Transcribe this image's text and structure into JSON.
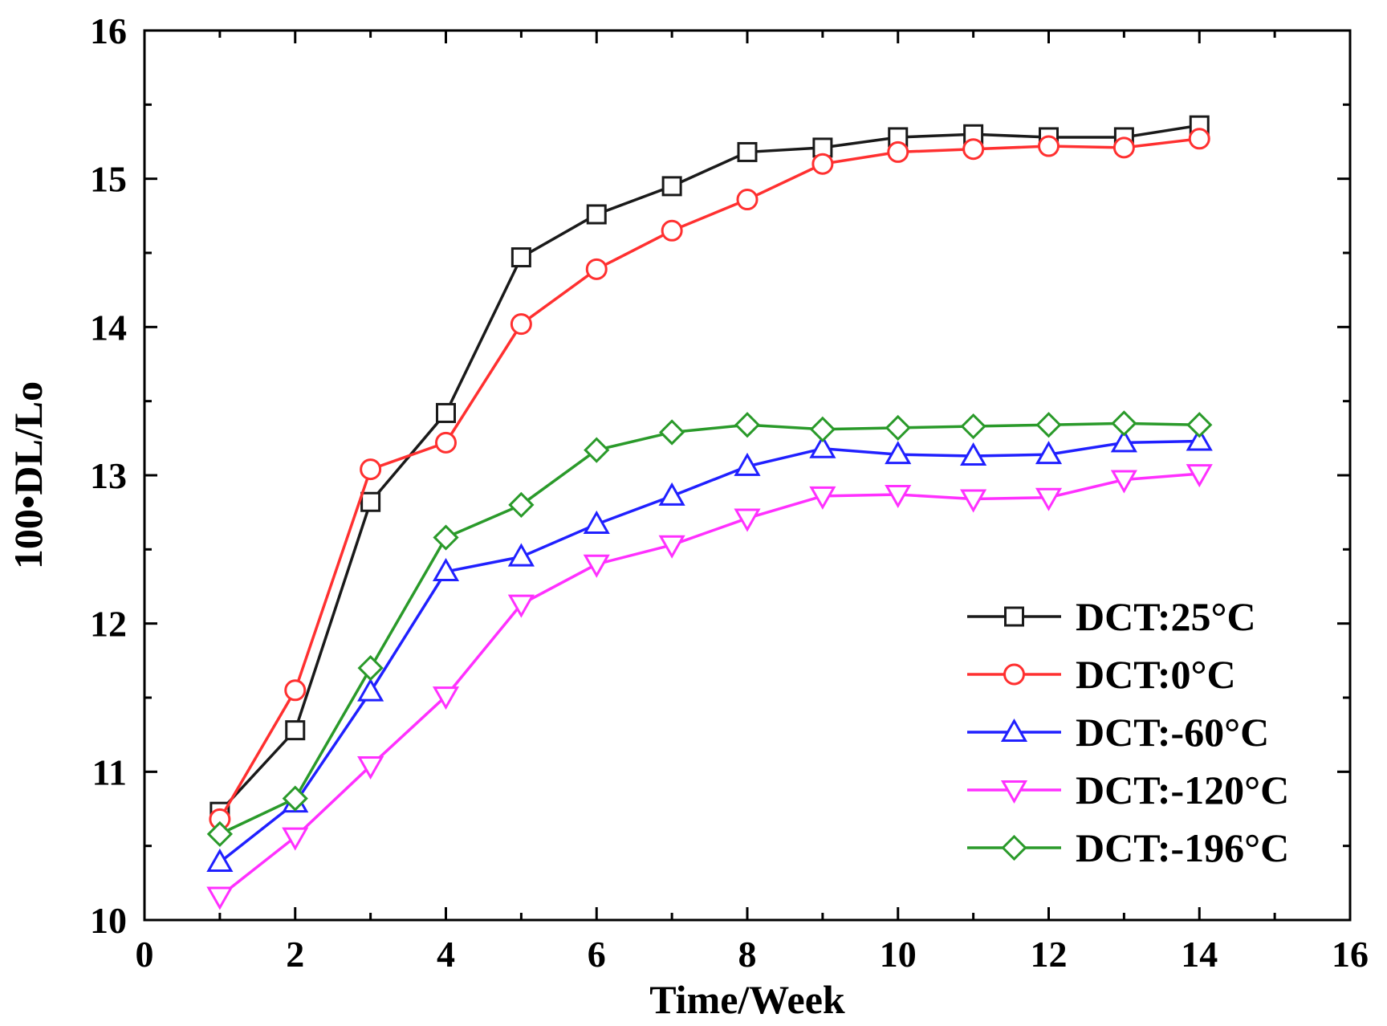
{
  "chart_data": {
    "type": "line",
    "title": "",
    "xlabel": "Time/Week",
    "ylabel": "100•DL/Lo",
    "xlim": [
      0,
      16
    ],
    "ylim": [
      10,
      16
    ],
    "xticks": [
      0,
      2,
      4,
      6,
      8,
      10,
      12,
      14,
      16
    ],
    "yticks": [
      10,
      11,
      12,
      13,
      14,
      15,
      16
    ],
    "grid": false,
    "legend_position": "lower-right",
    "x": [
      1,
      2,
      3,
      4,
      5,
      6,
      7,
      8,
      9,
      10,
      11,
      12,
      13,
      14
    ],
    "series": [
      {
        "name": "DCT:25°C",
        "color": "#1a1a1a",
        "marker": "square",
        "values": [
          10.73,
          11.28,
          12.82,
          13.42,
          14.47,
          14.76,
          14.95,
          15.18,
          15.21,
          15.28,
          15.3,
          15.28,
          15.28,
          15.36
        ]
      },
      {
        "name": "DCT:0°C",
        "color": "#ff3030",
        "marker": "circle",
        "values": [
          10.68,
          11.55,
          13.04,
          13.22,
          14.02,
          14.39,
          14.65,
          14.86,
          15.1,
          15.18,
          15.2,
          15.22,
          15.21,
          15.27
        ]
      },
      {
        "name": "DCT:-60°C",
        "color": "#2020ff",
        "marker": "triangle-up",
        "values": [
          10.39,
          10.79,
          11.54,
          12.35,
          12.45,
          12.67,
          12.86,
          13.06,
          13.18,
          13.14,
          13.13,
          13.14,
          13.22,
          13.23
        ]
      },
      {
        "name": "DCT:-120°C",
        "color": "#ff30ff",
        "marker": "triangle-down",
        "values": [
          10.16,
          10.56,
          11.04,
          11.51,
          12.13,
          12.4,
          12.53,
          12.71,
          12.86,
          12.87,
          12.84,
          12.85,
          12.97,
          13.01
        ]
      },
      {
        "name": "DCT:-196°C",
        "color": "#2a9a2a",
        "marker": "diamond",
        "values": [
          10.58,
          10.82,
          11.7,
          12.58,
          12.8,
          13.17,
          13.29,
          13.34,
          13.31,
          13.32,
          13.33,
          13.34,
          13.35,
          13.34
        ]
      }
    ]
  }
}
